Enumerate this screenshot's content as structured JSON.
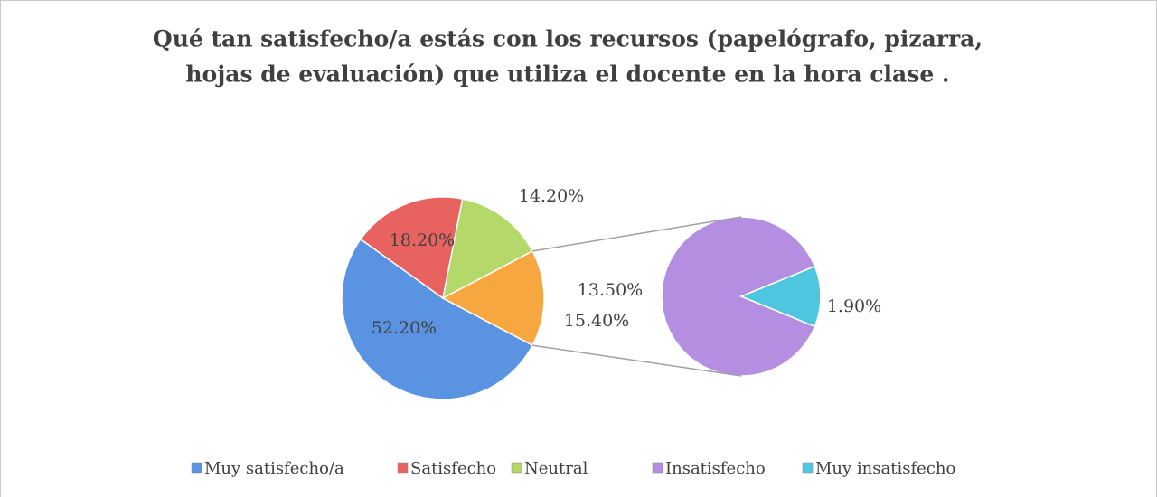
{
  "chart_data": {
    "type": "pie-of-pie",
    "title": [
      "Qué tan satisfecho/a estás con los recursos (papelógrafo, pizarra,",
      "hojas de evaluación) que utiliza el docente en la hora clase ."
    ],
    "categories": [
      "Muy satisfecho/a",
      "Satisfecho",
      "Neutral",
      "Insatisfecho",
      "Muy insatisfecho"
    ],
    "values": [
      52.2,
      18.2,
      14.2,
      13.5,
      1.9
    ],
    "value_labels": [
      "52.20%",
      "18.20%",
      "14.20%",
      "13.50%",
      "1.90%"
    ],
    "colors": [
      "#5a93e2",
      "#e8625f",
      "#b5d86a",
      "#b48ee0",
      "#4fc6df"
    ],
    "other": {
      "value": 15.4,
      "label": "15.40%",
      "color": "#f7a740"
    },
    "legend": "bottom"
  }
}
